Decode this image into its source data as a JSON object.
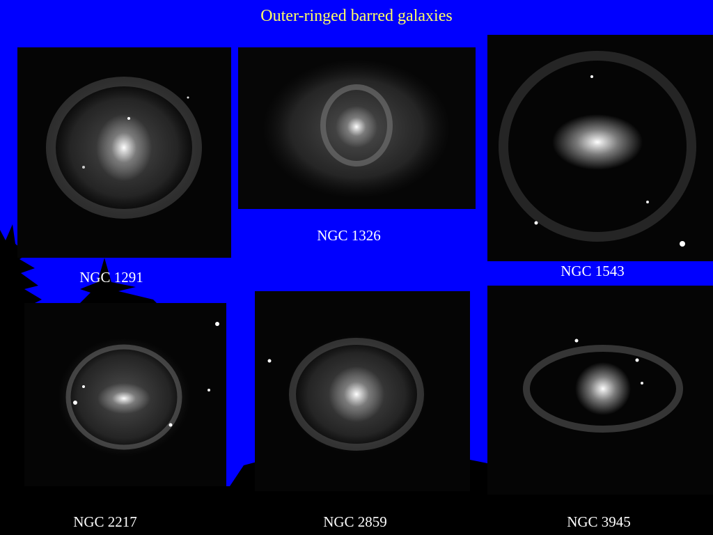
{
  "title": "Outer-ringed barred galaxies",
  "galaxies": [
    {
      "label": "NGC 1291"
    },
    {
      "label": "NGC 1326"
    },
    {
      "label": "NGC 1543"
    },
    {
      "label": "NGC 2217"
    },
    {
      "label": "NGC 2859"
    },
    {
      "label": "NGC 3945"
    }
  ]
}
